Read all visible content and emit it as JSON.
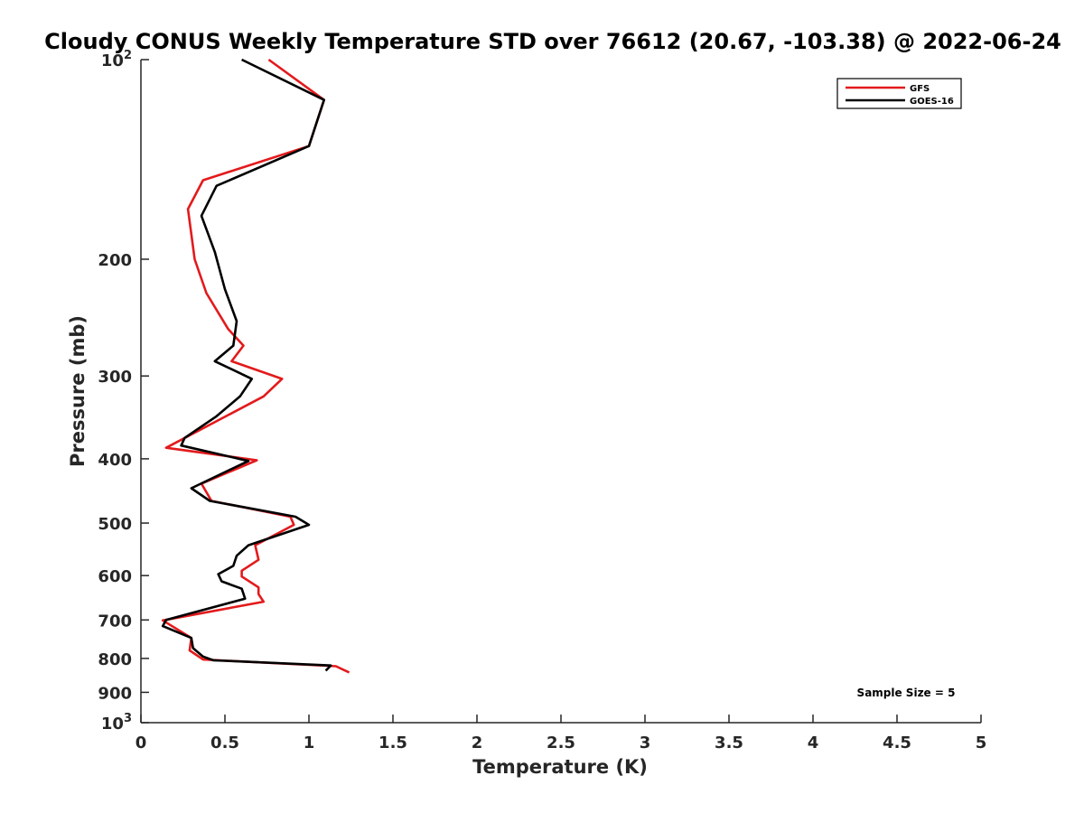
{
  "chart_data": {
    "type": "line",
    "title": "Cloudy CONUS Weekly Temperature STD over 76612 (20.67, -103.38) @ 2022-06-24",
    "xlabel": "Temperature (K)",
    "ylabel": "Pressure (mb)",
    "xlim": [
      0,
      5
    ],
    "ylim": [
      100,
      1000
    ],
    "y_scale": "log",
    "y_reversed": true,
    "x_ticks": [
      0,
      0.5,
      1,
      1.5,
      2,
      2.5,
      3,
      3.5,
      4,
      4.5,
      5
    ],
    "x_tick_labels": [
      "0",
      "0.5",
      "1",
      "1.5",
      "2",
      "2.5",
      "3",
      "3.5",
      "4",
      "4.5",
      "5"
    ],
    "y_ticks": [
      {
        "value": 100,
        "base": "10",
        "exp": "2"
      },
      {
        "value": 200,
        "label": "200"
      },
      {
        "value": 300,
        "label": "300"
      },
      {
        "value": 400,
        "label": "400"
      },
      {
        "value": 500,
        "label": "500"
      },
      {
        "value": 600,
        "label": "600"
      },
      {
        "value": 700,
        "label": "700"
      },
      {
        "value": 800,
        "label": "800"
      },
      {
        "value": 900,
        "label": "900"
      },
      {
        "value": 1000,
        "base": "10",
        "exp": "3"
      }
    ],
    "grid": false,
    "legend_position": "top-right",
    "annotation": "Sample Size = 5",
    "series": [
      {
        "name": "GFS",
        "color": "#e31a1c",
        "points": [
          [
            0.76,
            100
          ],
          [
            1.09,
            115
          ],
          [
            1.0,
            135
          ],
          [
            0.37,
            152
          ],
          [
            0.28,
            168
          ],
          [
            0.32,
            200
          ],
          [
            0.39,
            225
          ],
          [
            0.52,
            255
          ],
          [
            0.61,
            270
          ],
          [
            0.54,
            285
          ],
          [
            0.84,
            303
          ],
          [
            0.73,
            322
          ],
          [
            0.15,
            385
          ],
          [
            0.69,
            402
          ],
          [
            0.36,
            436
          ],
          [
            0.42,
            463
          ],
          [
            0.89,
            489
          ],
          [
            0.91,
            503
          ],
          [
            0.68,
            540
          ],
          [
            0.7,
            568
          ],
          [
            0.6,
            590
          ],
          [
            0.6,
            602
          ],
          [
            0.7,
            625
          ],
          [
            0.7,
            640
          ],
          [
            0.73,
            657
          ],
          [
            0.13,
            701
          ],
          [
            0.3,
            745
          ],
          [
            0.29,
            778
          ],
          [
            0.37,
            803
          ],
          [
            1.16,
            822
          ],
          [
            1.24,
            840
          ]
        ]
      },
      {
        "name": "GOES-16",
        "color": "#000000",
        "points": [
          [
            0.6,
            100
          ],
          [
            1.09,
            115
          ],
          [
            1.0,
            135
          ],
          [
            0.45,
            155
          ],
          [
            0.36,
            172
          ],
          [
            0.44,
            195
          ],
          [
            0.5,
            222
          ],
          [
            0.57,
            248
          ],
          [
            0.55,
            270
          ],
          [
            0.44,
            285
          ],
          [
            0.66,
            303
          ],
          [
            0.59,
            322
          ],
          [
            0.45,
            345
          ],
          [
            0.26,
            372
          ],
          [
            0.24,
            382
          ],
          [
            0.64,
            403
          ],
          [
            0.3,
            443
          ],
          [
            0.41,
            463
          ],
          [
            0.92,
            489
          ],
          [
            1.0,
            503
          ],
          [
            0.64,
            540
          ],
          [
            0.57,
            560
          ],
          [
            0.55,
            580
          ],
          [
            0.46,
            597
          ],
          [
            0.48,
            612
          ],
          [
            0.6,
            628
          ],
          [
            0.62,
            650
          ],
          [
            0.15,
            700
          ],
          [
            0.13,
            715
          ],
          [
            0.3,
            745
          ],
          [
            0.31,
            772
          ],
          [
            0.37,
            795
          ],
          [
            0.43,
            805
          ],
          [
            1.13,
            820
          ],
          [
            1.1,
            835
          ]
        ]
      }
    ]
  }
}
